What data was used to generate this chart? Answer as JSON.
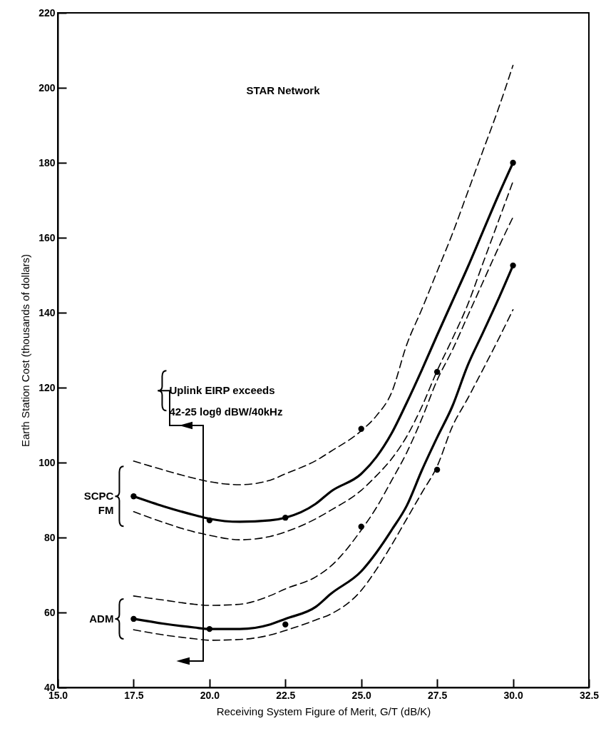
{
  "chart_data": {
    "type": "line",
    "xlabel": "Receiving System Figure of Merit, G/T (dB/K)",
    "ylabel": "Earth Station Cost (thousands of dollars)",
    "annotations": [
      "STAR Network",
      "Uplink EIRP exceeds\n42-25 logθ dBW/40kHz"
    ],
    "x": [
      17.5,
      18.5,
      19.5,
      20,
      21,
      22,
      22.5,
      23.5,
      24,
      25,
      25.5,
      26,
      26.5,
      27,
      27.5,
      28,
      28.5,
      29,
      29.5,
      30
    ],
    "series": [
      {
        "name": "SCPC FM",
        "type": "line",
        "line_style": "solid",
        "color": "#000000",
        "values": [
          91,
          88.3,
          86,
          85,
          84.2,
          84.6,
          85.3,
          89,
          92.3,
          97,
          101.5,
          107.8,
          116,
          124.8,
          134,
          143,
          152,
          161.5,
          171,
          180
        ]
      },
      {
        "type": "line",
        "line_style": "dashed",
        "color": "#000000",
        "values": [
          100.4,
          98,
          95.8,
          94.9,
          94.1,
          95.3,
          97,
          100.5,
          103,
          108.5,
          112.5,
          118.7,
          131.5,
          141,
          151,
          161,
          172,
          183,
          194,
          206
        ]
      },
      {
        "type": "line",
        "line_style": "dashed",
        "color": "#000000",
        "values": [
          86.9,
          84,
          81.5,
          80.6,
          79.4,
          80.3,
          81.5,
          85,
          87.3,
          92.6,
          96.5,
          101,
          107,
          115,
          124.5,
          133,
          142,
          153,
          164,
          175
        ]
      },
      {
        "name": "ADM",
        "type": "line",
        "line_style": "solid",
        "color": "#000000",
        "values": [
          58.3,
          57,
          56,
          55.6,
          55.6,
          56.8,
          58.3,
          61.5,
          65,
          71,
          76,
          82,
          88.5,
          98,
          106.7,
          115,
          125.8,
          134.5,
          143.3,
          152.6
        ]
      },
      {
        "type": "line",
        "line_style": "dashed",
        "color": "#000000",
        "values": [
          64.4,
          63.3,
          62.2,
          61.9,
          62.2,
          64.5,
          66.3,
          69.5,
          72.4,
          82,
          88,
          95.2,
          102.7,
          111.8,
          122,
          130,
          139,
          148,
          157,
          165.5
        ]
      },
      {
        "type": "line",
        "line_style": "dashed",
        "color": "#000000",
        "values": [
          55.4,
          54,
          53,
          52.6,
          52.8,
          54,
          55.2,
          58,
          59.6,
          65.9,
          71.5,
          78,
          85,
          92,
          99,
          109.6,
          117,
          124.7,
          132.6,
          140.8
        ]
      },
      {
        "type": "scatter",
        "marker": "circle",
        "color": "#000000",
        "x": [
          17.5,
          20,
          22.5,
          25,
          27.5,
          30
        ],
        "values": [
          91,
          84.6,
          85.3,
          109,
          124.2,
          180
        ]
      },
      {
        "type": "scatter",
        "marker": "circle",
        "color": "#000000",
        "x": [
          17.5,
          20,
          22.5,
          25,
          27.5,
          30
        ],
        "values": [
          58.3,
          55.6,
          56.8,
          82.9,
          98.1,
          152.6
        ]
      }
    ],
    "xlim": [
      15,
      32.5
    ],
    "xticks": [
      {
        "value": 15,
        "label": "15.0"
      },
      {
        "value": 17.5,
        "label": "17.5"
      },
      {
        "value": 20,
        "label": "20.0"
      },
      {
        "value": 22.5,
        "label": "22.5"
      },
      {
        "value": 25,
        "label": "25.0"
      },
      {
        "value": 27.5,
        "label": "27.5"
      },
      {
        "value": 30,
        "label": "30.0"
      },
      {
        "value": 32.5,
        "label": "32.5"
      }
    ],
    "ylim": [
      40,
      220
    ],
    "yticks": [
      40,
      60,
      80,
      100,
      120,
      140,
      160,
      180,
      200,
      220
    ],
    "grid": false
  }
}
